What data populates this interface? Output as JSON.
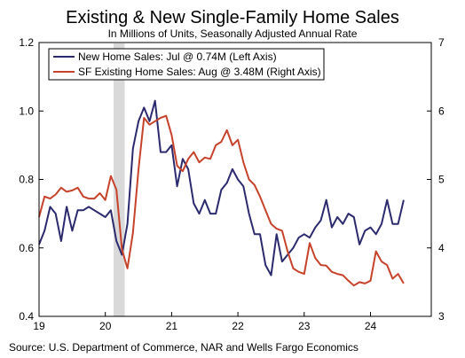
{
  "chart_data": {
    "type": "line",
    "title": "Existing & New Single-Family Home Sales",
    "subtitle": "In Millions of Units, Seasonally Adjusted Annual Rate",
    "source": "Source: U.S. Department of Commerce, NAR and Wells Fargo Economics",
    "x_range": [
      2019.0,
      2024.917
    ],
    "x_ticks": [
      {
        "value": 2019,
        "label": "19"
      },
      {
        "value": 2020,
        "label": "20"
      },
      {
        "value": 2021,
        "label": "21"
      },
      {
        "value": 2022,
        "label": "22"
      },
      {
        "value": 2023,
        "label": "23"
      },
      {
        "value": 2024,
        "label": "24"
      }
    ],
    "left_axis": {
      "min": 0.4,
      "max": 1.2,
      "ticks": [
        "0.4",
        "0.6",
        "0.8",
        "1.0",
        "1.2"
      ]
    },
    "right_axis": {
      "min": 3,
      "max": 7,
      "ticks": [
        "3",
        "4",
        "5",
        "6",
        "7"
      ]
    },
    "recession": {
      "start": 2020.125,
      "end": 2020.292
    },
    "legend_placement": "top-left",
    "series": [
      {
        "name": "New Home Sales: Jul @ 0.74M (Left Axis)",
        "axis": "left",
        "color": "#2b2a6e",
        "start": 2019.0,
        "values": [
          0.61,
          0.65,
          0.72,
          0.7,
          0.62,
          0.72,
          0.65,
          0.71,
          0.71,
          0.72,
          0.71,
          0.7,
          0.69,
          0.71,
          0.62,
          0.58,
          0.67,
          0.89,
          0.97,
          1.01,
          0.97,
          1.03,
          0.88,
          0.88,
          0.9,
          0.78,
          0.86,
          0.83,
          0.73,
          0.7,
          0.74,
          0.7,
          0.7,
          0.77,
          0.79,
          0.83,
          0.8,
          0.78,
          0.7,
          0.64,
          0.64,
          0.55,
          0.52,
          0.64,
          0.56,
          0.58,
          0.6,
          0.63,
          0.64,
          0.63,
          0.66,
          0.68,
          0.74,
          0.66,
          0.69,
          0.67,
          0.7,
          0.69,
          0.61,
          0.65,
          0.66,
          0.64,
          0.67,
          0.74,
          0.67,
          0.67,
          0.74
        ]
      },
      {
        "name": "SF Existing Home Sales: Aug @ 3.48M (Right Axis)",
        "axis": "right",
        "color": "#c7422a",
        "start": 2019.0,
        "values": [
          4.45,
          4.75,
          4.72,
          4.78,
          4.88,
          4.82,
          4.84,
          4.88,
          4.75,
          4.72,
          4.72,
          4.8,
          4.7,
          5.05,
          4.85,
          3.98,
          3.7,
          4.22,
          5.15,
          5.9,
          5.8,
          5.85,
          5.9,
          5.93,
          5.65,
          5.2,
          5.12,
          5.3,
          5.4,
          5.25,
          5.32,
          5.3,
          5.5,
          5.55,
          5.72,
          5.5,
          5.58,
          5.25,
          5.0,
          4.92,
          4.75,
          4.55,
          4.35,
          4.28,
          4.25,
          3.95,
          3.7,
          3.65,
          3.62,
          4.07,
          3.85,
          3.75,
          3.74,
          3.65,
          3.62,
          3.6,
          3.52,
          3.45,
          3.5,
          3.48,
          3.52,
          3.95,
          3.8,
          3.75,
          3.55,
          3.62,
          3.48
        ]
      }
    ]
  }
}
